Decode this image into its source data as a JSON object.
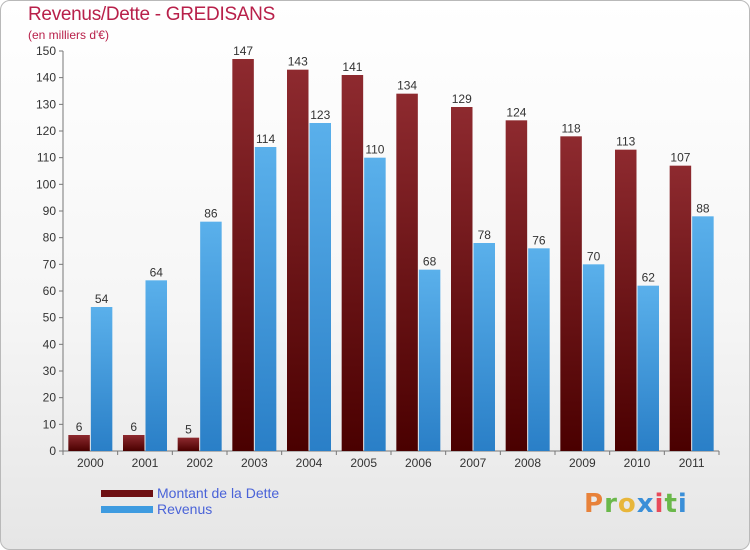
{
  "title": "Revenus/Dette - GREDISANS",
  "subtitle": "(en milliers d'€)",
  "logo_text": "Proxiti",
  "colors": {
    "title": "#b8204a",
    "dette_top": "#8e2a2f",
    "dette_bottom": "#4a0000",
    "revenus_top": "#5ab0eb",
    "revenus_bottom": "#2a7fc7",
    "legend_text": "#4a63d8"
  },
  "legend": [
    {
      "name": "Montant de la Dette",
      "color": "#6e0f12"
    },
    {
      "name": "Revenus",
      "color": "#3e9be0"
    }
  ],
  "chart_data": {
    "type": "bar",
    "categories": [
      "2000",
      "2001",
      "2002",
      "2003",
      "2004",
      "2005",
      "2006",
      "2007",
      "2008",
      "2009",
      "2010",
      "2011"
    ],
    "series": [
      {
        "name": "Montant de la Dette",
        "values": [
          6,
          6,
          5,
          147,
          143,
          141,
          134,
          129,
          124,
          118,
          113,
          107
        ]
      },
      {
        "name": "Revenus",
        "values": [
          54,
          64,
          86,
          114,
          123,
          110,
          68,
          78,
          76,
          70,
          62,
          88
        ]
      }
    ],
    "ylim": [
      0,
      150
    ],
    "yticks": [
      0,
      10,
      20,
      30,
      40,
      50,
      60,
      70,
      80,
      90,
      100,
      110,
      120,
      130,
      140,
      150
    ],
    "grid": false,
    "legend_position": "bottom-left"
  }
}
